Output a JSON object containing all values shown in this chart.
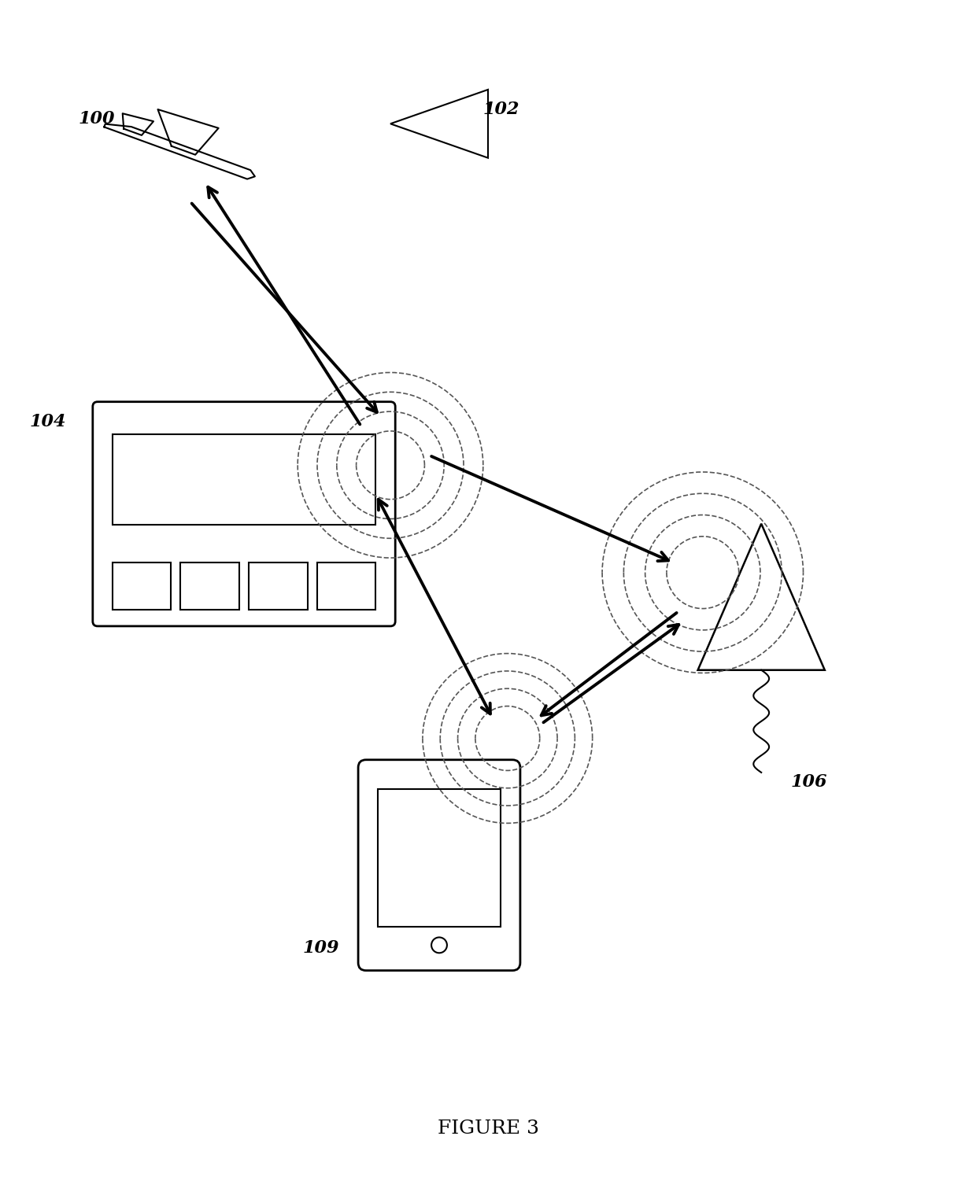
{
  "title": "FIGURE 3",
  "labels": {
    "airplane": "100",
    "satellite": "102",
    "controller": "104",
    "tablet": "109",
    "tower": "106"
  },
  "background_color": "#ffffff",
  "line_color": "#000000",
  "arrow_color": "#000000",
  "signal_color": "#555555"
}
